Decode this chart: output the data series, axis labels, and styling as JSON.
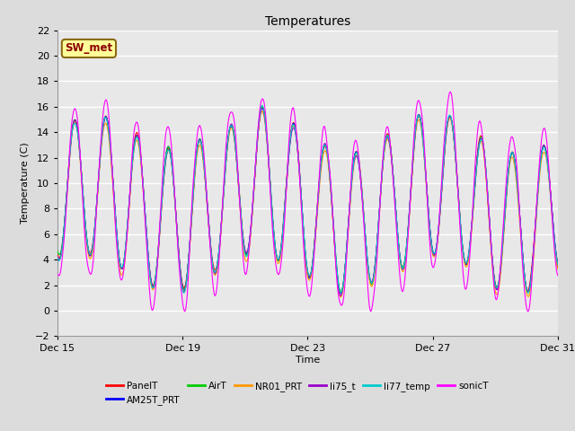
{
  "title": "Temperatures",
  "xlabel": "Time",
  "ylabel": "Temperature (C)",
  "ylim": [
    -2,
    22
  ],
  "yticks": [
    -2,
    0,
    2,
    4,
    6,
    8,
    10,
    12,
    14,
    16,
    18,
    20,
    22
  ],
  "annotation": "SW_met",
  "annotation_color": "#8B0000",
  "annotation_bg": "#FFFF99",
  "annotation_border": "#8B6914",
  "fig_bg": "#DCDCDC",
  "plot_bg": "#E8E8E8",
  "series": [
    {
      "label": "PanelT",
      "color": "#FF0000"
    },
    {
      "label": "AM25T_PRT",
      "color": "#0000FF"
    },
    {
      "label": "AirT",
      "color": "#00CC00"
    },
    {
      "label": "NR01_PRT",
      "color": "#FF9900"
    },
    {
      "label": "li75_t",
      "color": "#9900CC"
    },
    {
      "label": "li77_temp",
      "color": "#00CCCC"
    },
    {
      "label": "sonicT",
      "color": "#FF00FF"
    }
  ],
  "xticklabels": [
    "Dec 15",
    "Dec 19",
    "Dec 23",
    "Dec 27",
    "Dec 31"
  ],
  "xtick_positions": [
    0,
    4,
    8,
    12,
    16
  ],
  "seed": 42
}
